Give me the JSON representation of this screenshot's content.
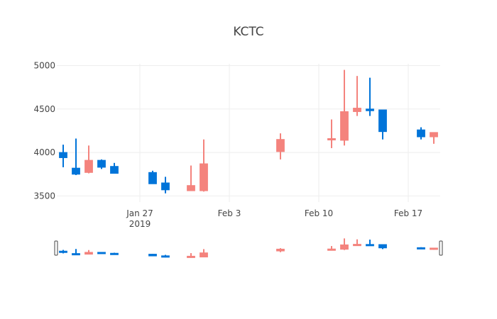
{
  "chart_data": {
    "type": "candlestick",
    "title": "KCTC",
    "xlabel": "",
    "ylabel": "",
    "ylim": [
      3430,
      5020
    ],
    "y_ticks": [
      3500,
      4000,
      4500,
      5000
    ],
    "x_ticks": [
      {
        "date": "2019-01-27",
        "label": "Jan 27",
        "sublabel": "2019"
      },
      {
        "date": "2019-02-03",
        "label": "Feb 3",
        "sublabel": ""
      },
      {
        "date": "2019-02-10",
        "label": "Feb 10",
        "sublabel": ""
      },
      {
        "date": "2019-02-17",
        "label": "Feb 17",
        "sublabel": ""
      }
    ],
    "x_range": [
      "2019-01-20T12:00",
      "2019-02-19T12:00"
    ],
    "increasing_color": "#3D9970",
    "decreasing_color": "#FF4136",
    "up_color": "#0074D9",
    "down_color": "#F4837D",
    "grid": true,
    "rangeslider": true,
    "candles": [
      {
        "date": "2019-01-21",
        "open": 3940,
        "high": 4090,
        "low": 3830,
        "close": 4000
      },
      {
        "date": "2019-01-22",
        "open": 3750,
        "high": 4160,
        "low": 3740,
        "close": 3820
      },
      {
        "date": "2019-01-23",
        "open": 3910,
        "high": 4080,
        "low": 3760,
        "close": 3770
      },
      {
        "date": "2019-01-24",
        "open": 3830,
        "high": 3920,
        "low": 3810,
        "close": 3910
      },
      {
        "date": "2019-01-25",
        "open": 3760,
        "high": 3880,
        "low": 3760,
        "close": 3840
      },
      {
        "date": "2019-01-28",
        "open": 3640,
        "high": 3790,
        "low": 3640,
        "close": 3770
      },
      {
        "date": "2019-01-29",
        "open": 3570,
        "high": 3720,
        "low": 3530,
        "close": 3650
      },
      {
        "date": "2019-01-31",
        "open": 3620,
        "high": 3850,
        "low": 3560,
        "close": 3560
      },
      {
        "date": "2019-02-01",
        "open": 3870,
        "high": 4150,
        "low": 3550,
        "close": 3560
      },
      {
        "date": "2019-02-07",
        "open": 4150,
        "high": 4220,
        "low": 3920,
        "close": 4010
      },
      {
        "date": "2019-02-11",
        "open": 4160,
        "high": 4380,
        "low": 4050,
        "close": 4150
      },
      {
        "date": "2019-02-12",
        "open": 4470,
        "high": 4950,
        "low": 4080,
        "close": 4140
      },
      {
        "date": "2019-02-13",
        "open": 4510,
        "high": 4880,
        "low": 4420,
        "close": 4470
      },
      {
        "date": "2019-02-14",
        "open": 4480,
        "high": 4860,
        "low": 4420,
        "close": 4500
      },
      {
        "date": "2019-02-15",
        "open": 4240,
        "high": 4490,
        "low": 4150,
        "close": 4490
      },
      {
        "date": "2019-02-18",
        "open": 4180,
        "high": 4290,
        "low": 4150,
        "close": 4260
      },
      {
        "date": "2019-02-19",
        "open": 4230,
        "high": 4230,
        "low": 4100,
        "close": 4180
      }
    ]
  }
}
